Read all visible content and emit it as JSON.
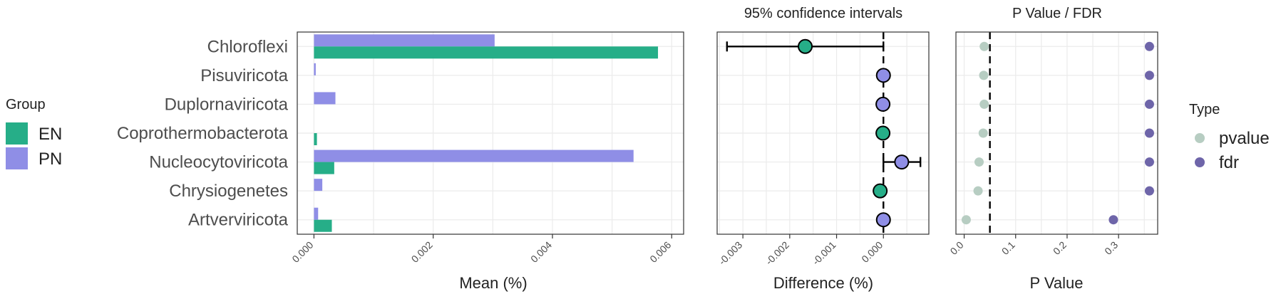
{
  "colors": {
    "EN": "#26AE88",
    "PN": "#8F8EE6",
    "pvalue": "#B7CDC2",
    "fdr": "#6E65A9",
    "grid": "#EBEBEB",
    "panel_border": "#333333"
  },
  "legend_group": {
    "title": "Group",
    "items": [
      {
        "label": "EN",
        "color": "#26AE88"
      },
      {
        "label": "PN",
        "color": "#8F8EE6"
      }
    ]
  },
  "legend_type": {
    "title": "Type",
    "items": [
      {
        "label": "pvalue",
        "color": "#B7CDC2"
      },
      {
        "label": "fdr",
        "color": "#6E65A9"
      }
    ]
  },
  "categories": [
    "Chloroflexi",
    "Pisuviricota",
    "Duplornaviricota",
    "Coprothermobacterota",
    "Nucleocytoviricota",
    "Chrysiogenetes",
    "Artverviricota"
  ],
  "chart_data": [
    {
      "type": "bar",
      "orientation": "horizontal",
      "categories": [
        "Chloroflexi",
        "Pisuviricota",
        "Duplornaviricota",
        "Coprothermobacterota",
        "Nucleocytoviricota",
        "Chrysiogenetes",
        "Artverviricota"
      ],
      "series": [
        {
          "name": "PN",
          "values": [
            0.00303,
            3e-05,
            0.00036,
            0.0,
            0.00536,
            0.00014,
            7e-05
          ]
        },
        {
          "name": "EN",
          "values": [
            0.00577,
            0.0,
            0.0,
            5e-05,
            0.00034,
            0.0,
            0.0003
          ]
        }
      ],
      "xlabel": "Mean (%)",
      "xlim": [
        -0.00028,
        0.0062
      ],
      "xticks": [
        0.0,
        0.002,
        0.004,
        0.006
      ],
      "xtick_labels": [
        "0.000",
        "0.002",
        "0.004",
        "0.006"
      ],
      "grid": true
    },
    {
      "type": "scatter",
      "title": "95% confidence intervals",
      "categories": [
        "Chloroflexi",
        "Pisuviricota",
        "Duplornaviricota",
        "Coprothermobacterota",
        "Nucleocytoviricota",
        "Chrysiogenetes",
        "Artverviricota"
      ],
      "points": [
        {
          "category": "Chloroflexi",
          "diff": -0.00167,
          "lower": -0.00334,
          "upper": 0.0,
          "group": "EN"
        },
        {
          "category": "Pisuviricota",
          "diff": 0.0,
          "lower": 0.0,
          "upper": 0.0,
          "group": "PN"
        },
        {
          "category": "Duplornaviricota",
          "diff": -1e-05,
          "lower": -1e-05,
          "upper": -1e-05,
          "group": "PN"
        },
        {
          "category": "Coprothermobacterota",
          "diff": -1e-05,
          "lower": -1e-05,
          "upper": -1e-05,
          "group": "EN"
        },
        {
          "category": "Nucleocytoviricota",
          "diff": 0.00039,
          "lower": 0.0,
          "upper": 0.00079,
          "group": "PN"
        },
        {
          "category": "Chrysiogenetes",
          "diff": -7e-05,
          "lower": -7e-05,
          "upper": -7e-05,
          "group": "EN"
        },
        {
          "category": "Artverviricota",
          "diff": 0.0,
          "lower": 0.0,
          "upper": 0.0,
          "group": "PN"
        }
      ],
      "xlabel": "Difference (%)",
      "xlim": [
        -0.00355,
        0.00097
      ],
      "xticks": [
        -0.003,
        -0.002,
        -0.001,
        0.0
      ],
      "xtick_labels": [
        "-0.003",
        "-0.002",
        "-0.001",
        "0.000"
      ],
      "reference_line": 0.0,
      "grid": true
    },
    {
      "type": "scatter",
      "title": "P Value / FDR",
      "categories": [
        "Chloroflexi",
        "Pisuviricota",
        "Duplornaviricota",
        "Coprothermobacterota",
        "Nucleocytoviricota",
        "Chrysiogenetes",
        "Artverviricota"
      ],
      "series": [
        {
          "name": "pvalue",
          "values": [
            0.039,
            0.038,
            0.039,
            0.037,
            0.029,
            0.027,
            0.004
          ]
        },
        {
          "name": "fdr",
          "values": [
            0.36,
            0.36,
            0.36,
            0.36,
            0.36,
            0.36,
            0.29
          ]
        }
      ],
      "xlabel": "P Value",
      "xlim": [
        -0.016,
        0.376
      ],
      "xticks": [
        0.0,
        0.1,
        0.2,
        0.3
      ],
      "xtick_labels": [
        "0.0",
        "0.1",
        "0.2",
        "0.3"
      ],
      "reference_line": 0.05,
      "grid": true
    }
  ]
}
